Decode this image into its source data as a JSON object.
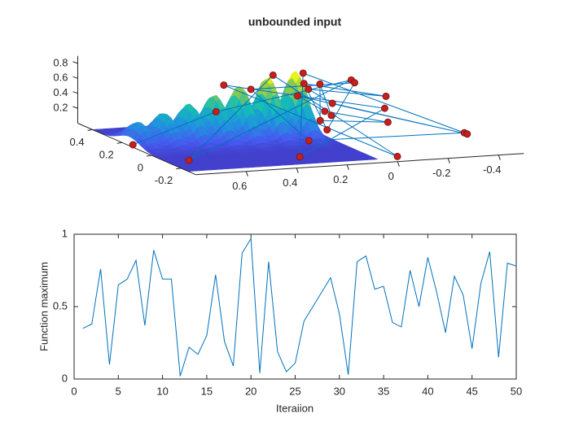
{
  "chart_data": [
    {
      "type": "line3d",
      "title": "unbounded input",
      "x": [
        0.78,
        0.41,
        -0.19,
        0.71,
        0.19,
        -0.04,
        0.35,
        -0.2,
        0.3,
        0.1,
        -0.34,
        0.2,
        0.26,
        -0.18,
        0.11,
        0.12,
        -0.24,
        0.12,
        0.06,
        -0.34,
        0.18,
        0.09,
        -0.16,
        0.12,
        0.01,
        0.07
      ],
      "y": [
        0.16,
        0.23,
        0.34,
        -0.1,
        0.22,
        -0.23,
        0.28,
        0.13,
        -0.15,
        0.17,
        -0.17,
        -0.04,
        0.25,
        0.3,
        -0.01,
        0.13,
        0.19,
        0.1,
        0.04,
        -0.19,
        0.07,
        0.04,
        0.04,
        0.02,
        0.21,
        0.03
      ],
      "z": [
        0,
        0.3,
        0.5,
        0,
        0.75,
        0,
        0.6,
        0.3,
        0,
        0.8,
        0.2,
        0.1,
        0.55,
        0.5,
        0.2,
        0.7,
        0.4,
        0.65,
        0.5,
        0.2,
        0.6,
        0.4,
        0.2,
        0.3,
        0.6,
        0.35
      ],
      "color": "#0072bd",
      "marker_color": "#c81e1e",
      "xlim": [
        -0.5,
        0.8
      ],
      "ylim": [
        -0.3,
        0.5
      ],
      "zlim": [
        0,
        0.9
      ],
      "xticks": [
        -0.4,
        -0.2,
        0,
        0.2,
        0.4,
        0.6
      ],
      "yticks": [
        -0.2,
        0,
        0.2,
        0.4
      ],
      "zticks": [
        0.2,
        0.4,
        0.6,
        0.8
      ]
    },
    {
      "type": "line",
      "xlabel": "Iteraiion",
      "ylabel": "Function maximum",
      "x": [
        1,
        2,
        3,
        4,
        5,
        6,
        7,
        8,
        9,
        10,
        11,
        12,
        13,
        14,
        15,
        16,
        17,
        18,
        19,
        20,
        21,
        22,
        23,
        24,
        25,
        26,
        27,
        28,
        29,
        30,
        31,
        32,
        33,
        34,
        35,
        36,
        37,
        38,
        39,
        40,
        41,
        42,
        43,
        44,
        45,
        46,
        47,
        48,
        49,
        50
      ],
      "values": [
        0.35,
        0.38,
        0.76,
        0.1,
        0.65,
        0.69,
        0.82,
        0.37,
        0.89,
        0.69,
        0.69,
        0.02,
        0.22,
        0.17,
        0.3,
        0.72,
        0.26,
        0.09,
        0.87,
        0.97,
        0.04,
        0.81,
        0.19,
        0.05,
        0.11,
        0.4,
        0.5,
        0.6,
        0.7,
        0.45,
        0.03,
        0.81,
        0.85,
        0.62,
        0.64,
        0.39,
        0.36,
        0.75,
        0.5,
        0.84,
        0.6,
        0.32,
        0.71,
        0.58,
        0.21,
        0.66,
        0.88,
        0.15,
        0.8,
        0.78
      ],
      "color": "#0072bd",
      "xlim": [
        0,
        50
      ],
      "ylim": [
        0,
        1
      ],
      "xticks": [
        0,
        5,
        10,
        15,
        20,
        25,
        30,
        35,
        40,
        45,
        50
      ],
      "yticks": [
        0,
        0.5,
        1
      ]
    }
  ]
}
